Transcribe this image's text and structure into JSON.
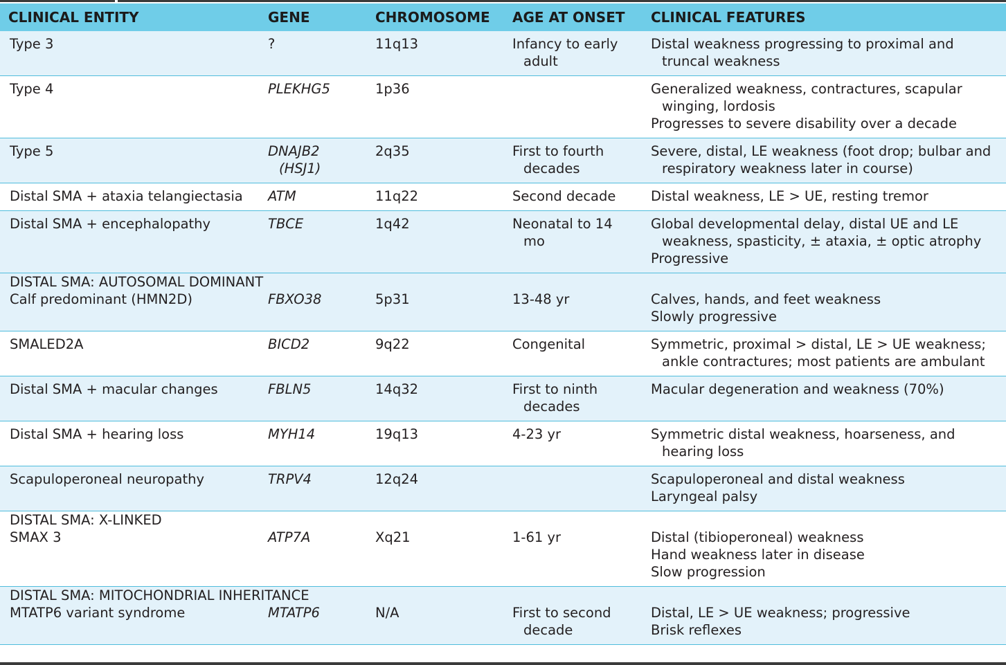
{
  "table": {
    "headers": [
      "CLINICAL ENTITY",
      "GENE",
      "CHROMOSOME",
      "AGE AT ONSET",
      "CLINICAL FEATURES"
    ],
    "rows": [
      {
        "kind": "data",
        "shade": "odd",
        "entity": "Type 3",
        "gene": "?",
        "gene_italic": false,
        "chromosome": "11q13",
        "onset": [
          "Infancy to early",
          "adult"
        ],
        "features": [
          [
            "Distal weakness progressing to proximal and",
            "truncal weakness"
          ]
        ]
      },
      {
        "kind": "data",
        "shade": "even",
        "entity": "Type 4",
        "gene": "PLEKHG5",
        "gene_italic": true,
        "chromosome": "1p36",
        "onset": [],
        "features": [
          [
            "Generalized weakness, contractures, scapular",
            "winging, lordosis"
          ],
          [
            "Progresses to severe disability over a decade"
          ]
        ]
      },
      {
        "kind": "data",
        "shade": "odd",
        "entity": "Type 5",
        "gene": "DNAJB2 (HSJ1)",
        "gene_lines": [
          "DNAJB2",
          "(HSJ1)"
        ],
        "gene_italic": true,
        "chromosome": "2q35",
        "onset": [
          "First to fourth",
          "decades"
        ],
        "features": [
          [
            "Severe, distal, LE weakness (foot drop; bulbar and",
            "respiratory weakness later in course)"
          ]
        ]
      },
      {
        "kind": "data",
        "shade": "even",
        "entity": "Distal SMA + ataxia telangiectasia",
        "gene": "ATM",
        "gene_italic": true,
        "chromosome": "11q22",
        "onset": [
          "Second decade"
        ],
        "features": [
          [
            "Distal weakness, LE > UE, resting tremor"
          ]
        ]
      },
      {
        "kind": "data",
        "shade": "odd",
        "entity": "Distal SMA + encephalopathy",
        "gene": "TBCE",
        "gene_italic": true,
        "chromosome": "1q42",
        "onset": [
          "Neonatal to 14",
          "mo"
        ],
        "features": [
          [
            "Global developmental delay, distal UE and LE",
            "weakness, spasticity, ± ataxia, ± optic atrophy"
          ],
          [
            "Progressive"
          ]
        ]
      },
      {
        "kind": "section",
        "shade": "odd",
        "label": "DISTAL SMA: AUTOSOMAL DOMINANT"
      },
      {
        "kind": "data",
        "shade": "odd",
        "entity": "Calf predominant (HMN2D)",
        "gene": "FBXO38",
        "gene_italic": true,
        "chromosome": "5p31",
        "onset": [
          "13-48 yr"
        ],
        "features": [
          [
            "Calves, hands, and feet weakness"
          ],
          [
            "Slowly progressive"
          ]
        ]
      },
      {
        "kind": "data",
        "shade": "even",
        "entity": "SMALED2A",
        "gene": "BICD2",
        "gene_italic": true,
        "chromosome": "9q22",
        "onset": [
          "Congenital"
        ],
        "features": [
          [
            "Symmetric, proximal > distal, LE > UE weakness;",
            "ankle contractures; most patients are ambulant"
          ]
        ]
      },
      {
        "kind": "data",
        "shade": "odd",
        "entity": "Distal SMA + macular changes",
        "gene": "FBLN5",
        "gene_italic": true,
        "chromosome": "14q32",
        "onset": [
          "First to ninth",
          "decades"
        ],
        "features": [
          [
            "Macular degeneration and weakness (70%)"
          ]
        ]
      },
      {
        "kind": "data",
        "shade": "even",
        "entity": "Distal SMA + hearing loss",
        "gene": "MYH14",
        "gene_italic": true,
        "chromosome": "19q13",
        "onset": [
          "4-23 yr"
        ],
        "features": [
          [
            "Symmetric distal weakness, hoarseness, and",
            "hearing loss"
          ]
        ]
      },
      {
        "kind": "data",
        "shade": "odd",
        "entity": "Scapuloperoneal neuropathy",
        "gene": "TRPV4",
        "gene_italic": true,
        "chromosome": "12q24",
        "onset": [],
        "features": [
          [
            "Scapuloperoneal and distal weakness"
          ],
          [
            "Laryngeal palsy"
          ]
        ]
      },
      {
        "kind": "section",
        "shade": "even",
        "label": "DISTAL SMA: X-LINKED"
      },
      {
        "kind": "data",
        "shade": "even",
        "entity": "SMAX 3",
        "gene": "ATP7A",
        "gene_italic": true,
        "chromosome": "Xq21",
        "onset": [
          "1-61 yr"
        ],
        "features": [
          [
            "Distal (tibioperoneal) weakness"
          ],
          [
            "Hand weakness later in disease"
          ],
          [
            "Slow progression"
          ]
        ]
      },
      {
        "kind": "section",
        "shade": "odd",
        "label": "DISTAL SMA: MITOCHONDRIAL INHERITANCE"
      },
      {
        "kind": "data",
        "shade": "odd",
        "entity": "MTATP6 variant syndrome",
        "gene": "MTATP6",
        "gene_italic": true,
        "chromosome": "N/A",
        "onset": [
          "First to second",
          "decade"
        ],
        "features": [
          [
            "Distal, LE > UE weakness; progressive"
          ],
          [
            "Brisk reflexes"
          ]
        ]
      }
    ]
  },
  "colors": {
    "header_bg": "#6fcde8",
    "row_shaded": "#e3f2fa",
    "row_plain": "#ffffff",
    "rule": "#4fbcdc"
  }
}
